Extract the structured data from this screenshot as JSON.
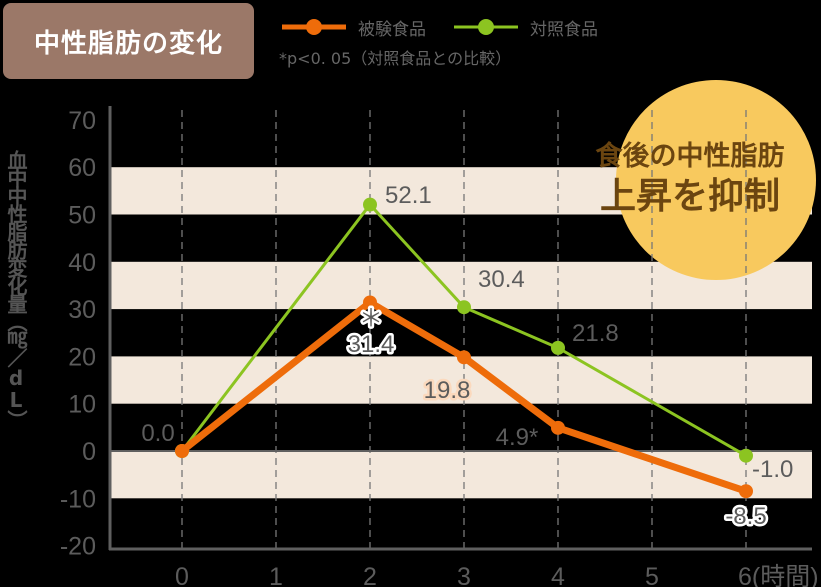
{
  "title": "中性脂肪の変化",
  "legend": [
    {
      "label": "被験食品",
      "color": "#ee6c0a"
    },
    {
      "label": "対照食品",
      "color": "#8cc421"
    }
  ],
  "note": "*p<0. 05（対照食品との比較）",
  "ylabel": "血中中性脂肪変化量（㎎／dL）",
  "callout": {
    "line1": "食後の中性脂肪",
    "line2": "上昇を抑制",
    "bg": "#f8c95e"
  },
  "colors": {
    "stripe": "#f3e8dc",
    "axis": "#5f5f5f",
    "grid": "#777777",
    "text": "#5c5c5c"
  },
  "chart_data": {
    "type": "line",
    "title": "中性脂肪の変化",
    "xlabel": "(時間)",
    "ylabel": "血中中性脂肪変化量（㎎／dL）",
    "x": [
      0,
      2,
      3,
      4,
      6
    ],
    "x_ticks": [
      "0",
      "1",
      "2",
      "3",
      "4",
      "5",
      "6(時間)"
    ],
    "y_ticks": [
      70,
      60,
      50,
      40,
      30,
      20,
      10,
      0,
      -10,
      -20
    ],
    "ylim": [
      -20,
      70
    ],
    "grid": "vertical dashed",
    "legend_position": "top",
    "series": [
      {
        "name": "被験食品",
        "color": "#ee6c0a",
        "values": [
          0.0,
          31.4,
          19.8,
          4.9,
          -8.5
        ],
        "labels": [
          "0.0",
          "31.4",
          "19.8",
          "4.9*",
          "-8.5"
        ],
        "significant_at": [
          2,
          4
        ]
      },
      {
        "name": "対照食品",
        "color": "#8cc421",
        "values": [
          0.0,
          52.1,
          30.4,
          21.8,
          -1.0
        ],
        "labels": [
          "",
          "52.1",
          "30.4",
          "21.8",
          "-1.0"
        ]
      }
    ],
    "annotations": [
      "*p<0. 05（対照食品との比較）",
      "食後の中性脂肪 上昇を抑制"
    ]
  }
}
